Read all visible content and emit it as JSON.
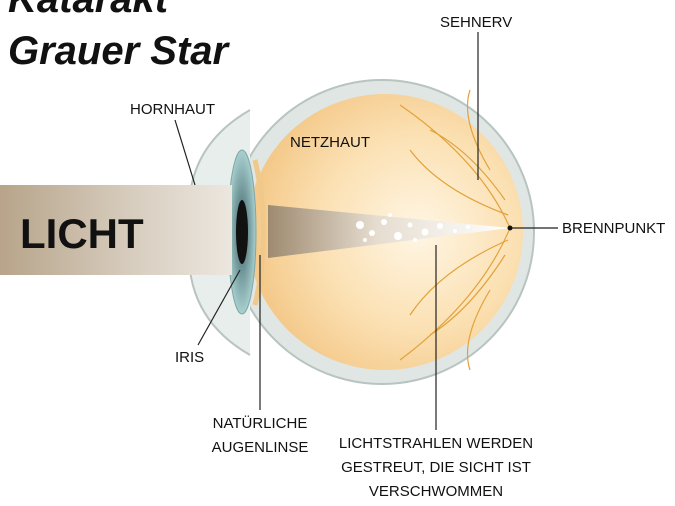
{
  "title": {
    "lines": [
      "Katarakt",
      "Grauer Star"
    ]
  },
  "labels": {
    "sehnerv": "SEHNERV",
    "hornhaut": "HORNHAUT",
    "netzhaut": "NETZHAUT",
    "licht": "LICHT",
    "brennpunkt": "BRENNPUNKT",
    "iris": "IRIS",
    "augenlinse": [
      "NATÜRLICHE",
      "AUGENLINSE"
    ],
    "streuung": [
      "LICHTSTRAHLEN WERDEN",
      "GESTREUT, DIE SICHT IST",
      "VERSCHWOMMEN"
    ]
  }
}
